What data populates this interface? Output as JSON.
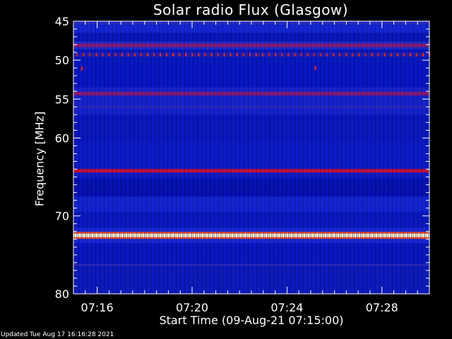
{
  "chart_data": {
    "type": "heatmap",
    "title": "Solar radio Flux (Glasgow)",
    "ylabel": "Frequency [MHz]",
    "xlabel": "Start Time (09-Aug-21 07:15:00)",
    "y_ticks": [
      "45",
      "50",
      "55",
      "60",
      "70",
      "80"
    ],
    "y_range": [
      45,
      80
    ],
    "x_ticks": [
      "07:16",
      "07:20",
      "07:24",
      "07:28"
    ],
    "x_range_minutes_after_start": [
      0,
      15
    ],
    "bands": [
      {
        "freq_mhz": 45.3,
        "level": "low"
      },
      {
        "freq_mhz": 48.1,
        "level": "medium"
      },
      {
        "freq_mhz": 49.3,
        "level": "high-dotted"
      },
      {
        "freq_mhz": 54.3,
        "level": "medium"
      },
      {
        "freq_mhz": 56.0,
        "level": "low"
      },
      {
        "freq_mhz": 64.2,
        "level": "high"
      },
      {
        "freq_mhz": 72.5,
        "level": "saturated"
      },
      {
        "freq_mhz": 76.3,
        "level": "low"
      }
    ],
    "spikes": [
      {
        "minute": 0.35,
        "freq_mhz": 51.1
      },
      {
        "minute": 10.2,
        "freq_mhz": 51.0
      }
    ],
    "colors": {
      "background": "#000000",
      "low": "#0a14c8",
      "high": "#e01020",
      "saturated": "#fff8c0"
    }
  },
  "footer": "Updated Tue Aug 17 16:16:28 2021"
}
